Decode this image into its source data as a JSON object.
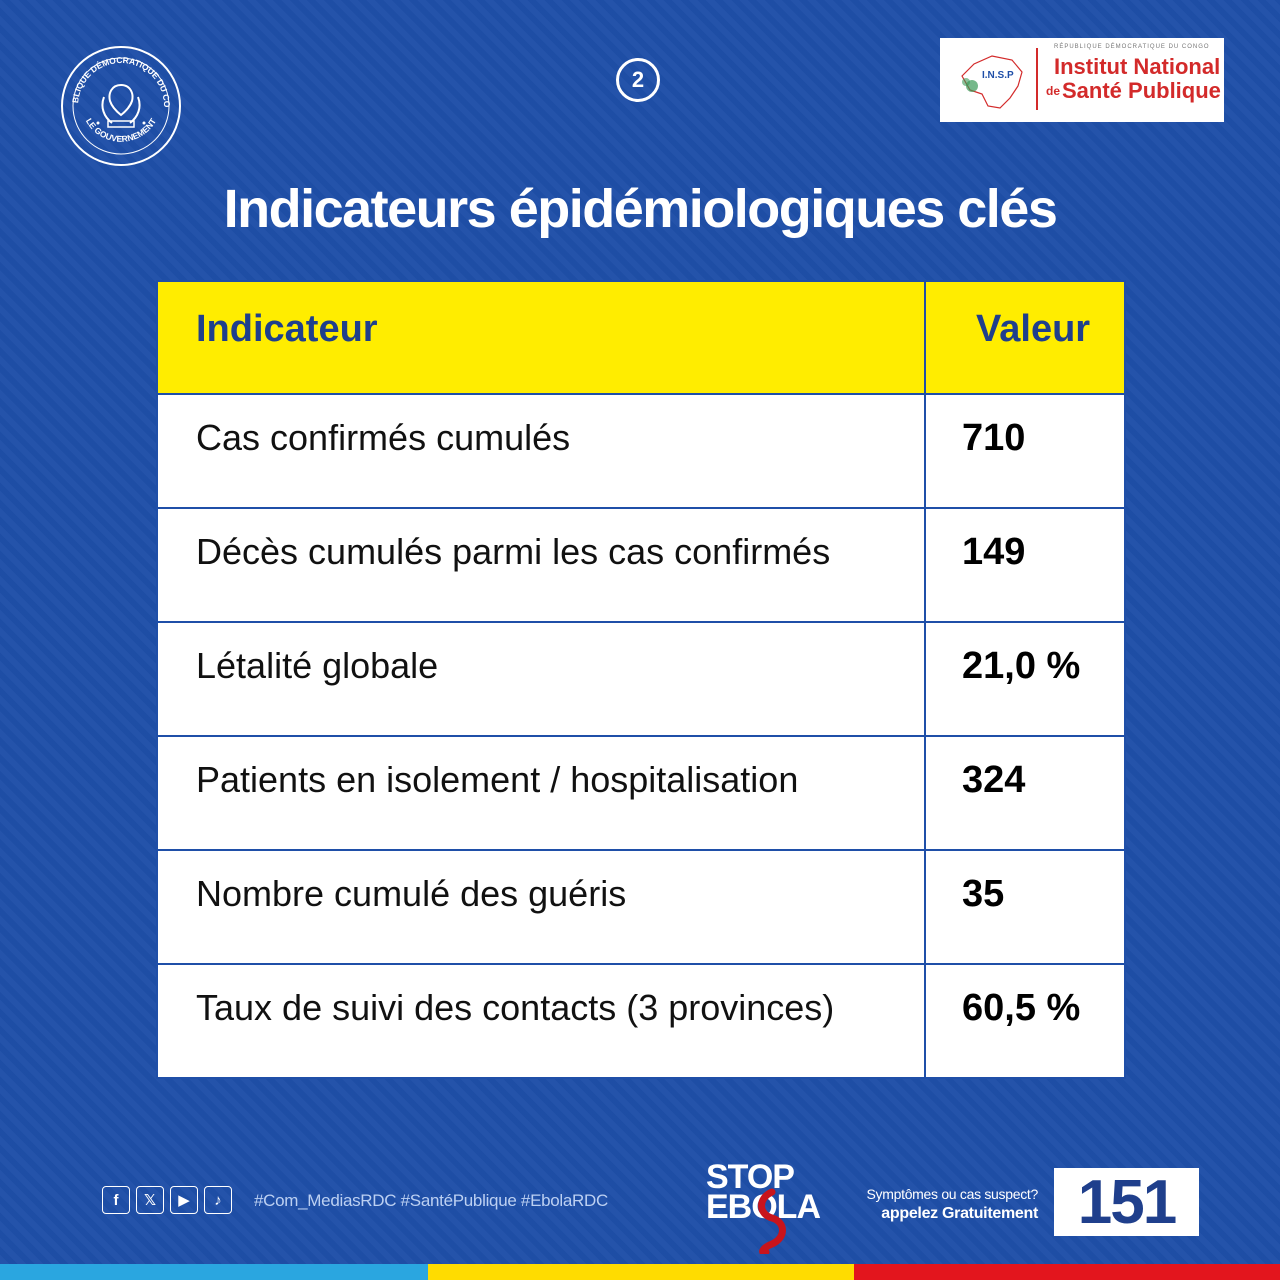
{
  "seal": {
    "top_text": "RÉPUBLIQUE DÉMOCRATIQUE DU CONGO",
    "bottom_text": "LE GOUVERNEMENT"
  },
  "page_number": "2",
  "insp": {
    "top_line": "RÉPUBLIQUE DÉMOCRATIQUE DU CONGO",
    "map_label": "I.N.S.P",
    "name_line1": "Institut National",
    "name_de": "de",
    "name_line2": "Santé Publique",
    "color": "#d32a2a"
  },
  "title": "Indicateurs épidémiologiques clés",
  "table": {
    "headers": [
      "Indicateur",
      "Valeur"
    ],
    "rows": [
      {
        "indicator": "Cas confirmés cumulés",
        "value": "710"
      },
      {
        "indicator": "Décès cumulés parmi les cas confirmés",
        "value": "149"
      },
      {
        "indicator": "Létalité globale",
        "value": "21,0 %"
      },
      {
        "indicator": "Patients en isolement / hospitalisation",
        "value": "324"
      },
      {
        "indicator": "Nombre cumulé des guéris",
        "value": "35"
      },
      {
        "indicator": "Taux de suivi des contacts (3 provinces)",
        "value": "60,5 %"
      }
    ],
    "header_bg": "#ffed00",
    "header_color": "#1f3f8c"
  },
  "footer": {
    "social_icons": [
      {
        "name": "facebook-icon",
        "glyph": "f"
      },
      {
        "name": "x-icon",
        "glyph": "𝕏"
      },
      {
        "name": "youtube-icon",
        "glyph": "▶"
      },
      {
        "name": "tiktok-icon",
        "glyph": "♪"
      }
    ],
    "hashtags": "#Com_MediasRDC #SantéPublique #EbolaRDC",
    "stop_line1": "STOP",
    "stop_line2": "EBOLA",
    "symptoms_line1": "Symptômes ou cas suspect?",
    "symptoms_line2": "appelez Gratuitement",
    "hotline": "151"
  },
  "colors": {
    "background": "#1f4fa8",
    "flag_blue": "#2aa6e0",
    "flag_yellow": "#ffdc00",
    "flag_red": "#e3151d"
  }
}
